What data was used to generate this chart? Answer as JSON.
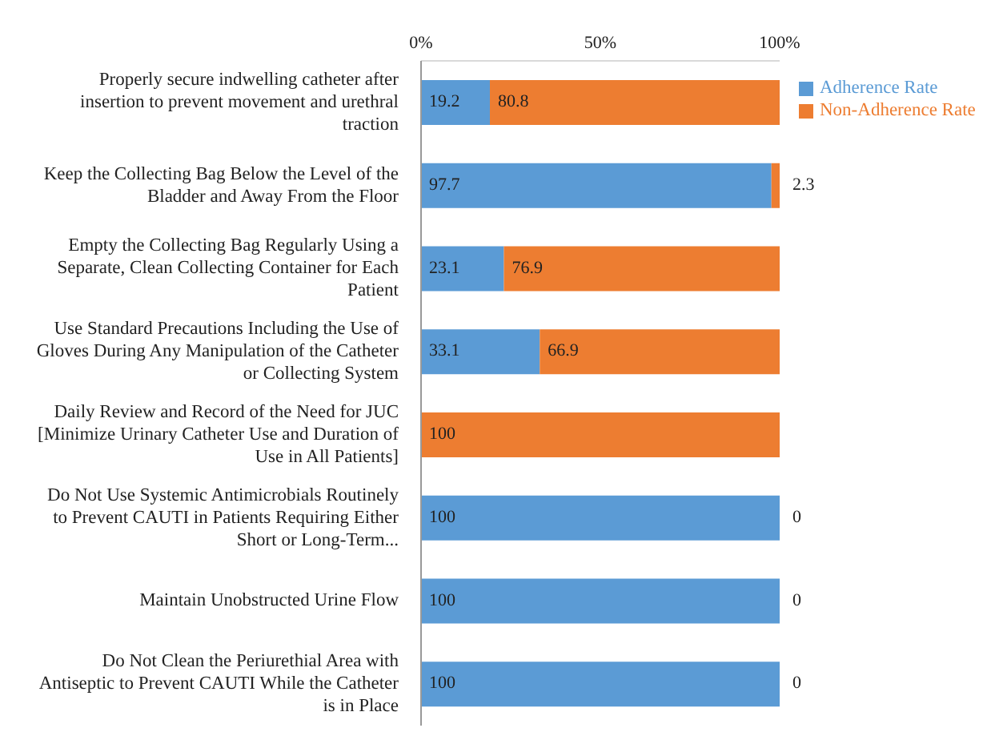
{
  "chart_data": {
    "type": "bar",
    "orientation": "horizontal",
    "stacked": true,
    "categories": [
      "Properly secure indwelling catheter after insertion to prevent movement and urethral traction",
      "Keep the Collecting Bag Below the Level of the Bladder and Away From the Floor",
      "Empty the Collecting Bag Regularly Using a Separate, Clean Collecting Container for Each Patient",
      "Use Standard Precautions Including the Use of Gloves During Any Manipulation of the Catheter or Collecting System",
      "Daily Review and Record of the Need for JUC [Minimize Urinary Catheter Use and Duration of Use in All Patients]",
      "Do Not Use Systemic Antimicrobials Routinely to Prevent CAUTI in Patients Requiring Either Short or Long-Term...",
      "Maintain Unobstructed Urine Flow",
      "Do Not Clean the Periurethial Area with Antiseptic to Prevent CAUTI While the Catheter is in Place"
    ],
    "series": [
      {
        "name": "Adherence Rate",
        "color": "#5b9bd5",
        "values": [
          19.2,
          97.7,
          23.1,
          33.1,
          0,
          100,
          100,
          100
        ],
        "value_labels": [
          "19.2",
          "97.7",
          "23.1",
          "33.1",
          null,
          "100",
          "100",
          "100"
        ]
      },
      {
        "name": "Non-Adherence Rate",
        "color": "#ed7d31",
        "values": [
          80.8,
          2.3,
          76.9,
          66.9,
          100,
          0,
          0,
          0
        ],
        "value_labels": [
          "80.8",
          "2.3",
          "76.9",
          "66.9",
          "100",
          "0",
          "0",
          "0"
        ]
      }
    ],
    "xlim": [
      0,
      100
    ],
    "xticks": [
      {
        "value": 0,
        "label": "0%"
      },
      {
        "value": 50,
        "label": "50%"
      },
      {
        "value": 100,
        "label": "100%"
      }
    ],
    "legend": "top right"
  }
}
